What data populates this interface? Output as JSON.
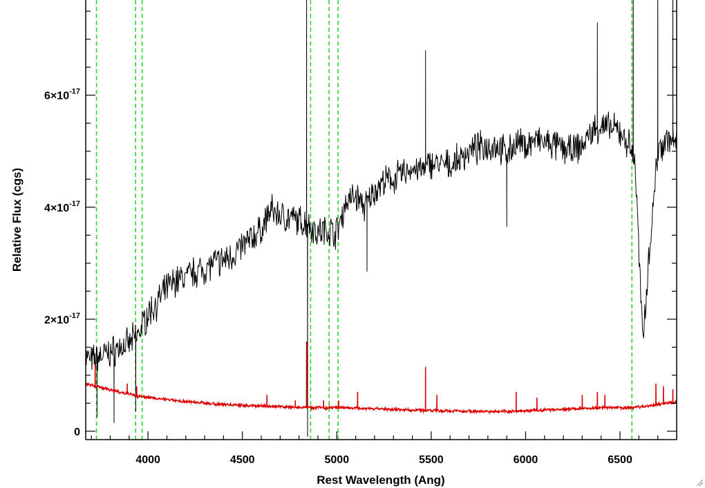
{
  "chart_data": {
    "type": "line",
    "xlabel": "Rest Wavelength (Ang)",
    "ylabel": "Relative Flux (cgs)",
    "xlim": [
      3670,
      6800
    ],
    "ylim": [
      -1.5e-18,
      7.7e-17
    ],
    "x_ticks": [
      4000,
      4500,
      5000,
      5500,
      6000,
      6500
    ],
    "x_tick_labels": [
      "4000",
      "4500",
      "5000",
      "5500",
      "6000",
      "6500"
    ],
    "y_ticks": [
      0,
      2e-17,
      4e-17,
      6e-17
    ],
    "y_tick_labels": [
      {
        "mantissa": "0",
        "exponent": ""
      },
      {
        "mantissa": "2×10",
        "exponent": "-17"
      },
      {
        "mantissa": "4×10",
        "exponent": "-17"
      },
      {
        "mantissa": "6×10",
        "exponent": "-17"
      }
    ],
    "grid": false,
    "reference_lines": [
      3727,
      3934,
      3969,
      4861,
      4959,
      5007,
      6563
    ],
    "series": [
      {
        "color": "#000000",
        "x": [
          3670,
          3700,
          3750,
          3800,
          3850,
          3900,
          3950,
          4000,
          4050,
          4100,
          4150,
          4200,
          4250,
          4300,
          4350,
          4400,
          4450,
          4500,
          4550,
          4600,
          4650,
          4700,
          4750,
          4800,
          4850,
          4900,
          4950,
          5000,
          5050,
          5100,
          5150,
          5200,
          5250,
          5300,
          5350,
          5400,
          5450,
          5500,
          5550,
          5600,
          5650,
          5700,
          5750,
          5800,
          5850,
          5900,
          5950,
          6000,
          6050,
          6100,
          6150,
          6200,
          6250,
          6300,
          6350,
          6400,
          6450,
          6500,
          6550,
          6580,
          6600,
          6620,
          6650,
          6700,
          6750,
          6800
        ],
        "values": [
          1.35e-17,
          1.25e-17,
          1.35e-17,
          1.4e-17,
          1.5e-17,
          1.55e-17,
          1.75e-17,
          2.1e-17,
          2.3e-17,
          2.55e-17,
          2.7e-17,
          2.75e-17,
          2.85e-17,
          2.9e-17,
          3e-17,
          3.05e-17,
          3.15e-17,
          3.3e-17,
          3.45e-17,
          3.6e-17,
          3.95e-17,
          3.85e-17,
          3.8e-17,
          3.75e-17,
          3.7e-17,
          3.55e-17,
          3.6e-17,
          3.55e-17,
          4.1e-17,
          4.2e-17,
          4e-17,
          4.3e-17,
          4.45e-17,
          4.5e-17,
          4.6e-17,
          4.7e-17,
          4.65e-17,
          4.8e-17,
          4.75e-17,
          4.75e-17,
          4.85e-17,
          5e-17,
          5.05e-17,
          5.1e-17,
          5.1e-17,
          4.95e-17,
          5.15e-17,
          5.1e-17,
          5.2e-17,
          5.15e-17,
          5.1e-17,
          5.05e-17,
          5e-17,
          5.1e-17,
          5.35e-17,
          5.45e-17,
          5.4e-17,
          5.35e-17,
          5.1e-17,
          4.8e-17,
          3.2e-17,
          1.6e-17,
          3e-17,
          5e-17,
          5.25e-17,
          5.1e-17
        ],
        "noise": 2.2e-18,
        "features": [
          {
            "x": 3730,
            "y": 2.5e-18
          },
          {
            "x": 3820,
            "y": 1.5e-18
          },
          {
            "x": 3935,
            "y": 3.5e-18
          },
          {
            "x": 4840,
            "y": 9e-17
          },
          {
            "x": 4845,
            "y": -1e-18
          },
          {
            "x": 5160,
            "y": 2.85e-17
          },
          {
            "x": 5470,
            "y": 6.8e-17
          },
          {
            "x": 5900,
            "y": 3.65e-17
          },
          {
            "x": 6380,
            "y": 7.3e-17
          },
          {
            "x": 6570,
            "y": 9e-17
          },
          {
            "x": 6700,
            "y": 9e-17
          },
          {
            "x": 6780,
            "y": 9e-17
          }
        ]
      },
      {
        "color": "#dd0000",
        "x": [
          3670,
          3750,
          3850,
          3950,
          4050,
          4150,
          4300,
          4450,
          4600,
          4750,
          4900,
          5050,
          5200,
          5350,
          5500,
          5650,
          5800,
          5950,
          6100,
          6250,
          6400,
          6550,
          6650,
          6750,
          6800
        ],
        "values": [
          8.5e-18,
          7.8e-18,
          7e-18,
          6.3e-18,
          5.8e-18,
          5.5e-18,
          5e-18,
          4.7e-18,
          4.5e-18,
          4.3e-18,
          4.2e-18,
          4.2e-18,
          4e-18,
          3.8e-18,
          3.7e-18,
          3.6e-18,
          3.5e-18,
          3.6e-18,
          3.8e-18,
          4e-18,
          4.2e-18,
          4.2e-18,
          4.5e-18,
          5e-18,
          5.2e-18
        ],
        "noise": 2e-19,
        "features": [
          {
            "x": 3720,
            "y": 1.2e-17
          },
          {
            "x": 3890,
            "y": 8.5e-18
          },
          {
            "x": 3940,
            "y": 8e-18
          },
          {
            "x": 4630,
            "y": 6.5e-18
          },
          {
            "x": 4780,
            "y": 5.5e-18
          },
          {
            "x": 4840,
            "y": 1.6e-17
          },
          {
            "x": 4930,
            "y": 5.5e-18
          },
          {
            "x": 5010,
            "y": 5.5e-18
          },
          {
            "x": 5110,
            "y": 7e-18
          },
          {
            "x": 5470,
            "y": 1.15e-17
          },
          {
            "x": 5530,
            "y": 6.5e-18
          },
          {
            "x": 5950,
            "y": 7e-18
          },
          {
            "x": 6060,
            "y": 6e-18
          },
          {
            "x": 6300,
            "y": 6.5e-18
          },
          {
            "x": 6380,
            "y": 7e-18
          },
          {
            "x": 6420,
            "y": 6.5e-18
          },
          {
            "x": 6690,
            "y": 8.5e-18
          },
          {
            "x": 6730,
            "y": 8e-18
          },
          {
            "x": 6780,
            "y": 7.5e-18
          }
        ]
      }
    ]
  }
}
